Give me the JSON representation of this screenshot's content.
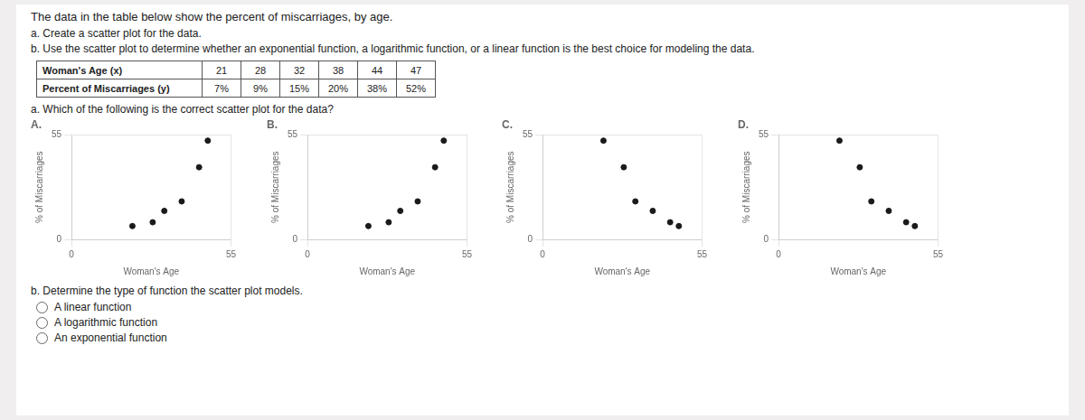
{
  "title": "The data in the table below show the percent of miscarriages, by age.",
  "annotations": [
    "a. Create a scatter plot for the data.",
    "b. Use the scatter plot to determine whether an exponential function, a logarithmic function, or a linear function is the best choice for modeling the data.",
    "a. Which of the following is the correct scatter plot for the data?",
    "b. Determine the type of function the scatter plot models."
  ],
  "table": [
    [
      "Woman's Age (x)",
      "21",
      "28",
      "32",
      "38",
      "44",
      "47"
    ],
    [
      "Percent of Miscarriages (y)",
      "7%",
      "9%",
      "15%",
      "20%",
      "38%",
      "52%"
    ]
  ],
  "options": [
    "A linear function",
    "A logarithmic function",
    "An exponential function"
  ],
  "chart_data": [
    {
      "type": "scatter",
      "title": "A.",
      "xlabel": "Woman's Age",
      "ylabel": "% of Miscarriages",
      "x": [
        21,
        28,
        32,
        38,
        44,
        47
      ],
      "values": [
        7,
        9,
        15,
        20,
        38,
        52
      ],
      "color": "#1a1a1a",
      "xlim": [
        0,
        55
      ],
      "ylim": [
        0,
        55
      ],
      "xticks": [
        0,
        55
      ],
      "yticks": [
        0,
        55
      ],
      "grid": true
    },
    {
      "type": "scatter",
      "title": "B.",
      "xlabel": "Woman's Age",
      "ylabel": "% of Miscarriages",
      "x": [
        21,
        28,
        32,
        38,
        44,
        47
      ],
      "values": [
        7,
        9,
        15,
        20,
        38,
        52
      ],
      "color": "#1a1a1a",
      "xlim": [
        0,
        55
      ],
      "ylim": [
        0,
        55
      ],
      "xticks": [
        0,
        55
      ],
      "yticks": [
        0,
        55
      ],
      "grid": true
    },
    {
      "type": "scatter",
      "title": "C.",
      "xlabel": "Woman's Age",
      "ylabel": "% of Miscarriages",
      "x": [
        21,
        28,
        32,
        38,
        44,
        47
      ],
      "values": [
        52,
        38,
        20,
        15,
        9,
        7
      ],
      "color": "#1a1a1a",
      "xlim": [
        0,
        55
      ],
      "ylim": [
        0,
        55
      ],
      "xticks": [
        0,
        55
      ],
      "yticks": [
        0,
        55
      ],
      "grid": true
    },
    {
      "type": "scatter",
      "title": "D.",
      "xlabel": "Woman's Age",
      "ylabel": "% of Miscarriages",
      "x": [
        21,
        28,
        32,
        38,
        44,
        47
      ],
      "values": [
        52,
        38,
        20,
        15,
        9,
        7
      ],
      "color": "#1a1a1a",
      "xlim": [
        0,
        55
      ],
      "ylim": [
        0,
        55
      ],
      "xticks": [
        0,
        55
      ],
      "yticks": [
        0,
        55
      ],
      "grid": true
    }
  ]
}
